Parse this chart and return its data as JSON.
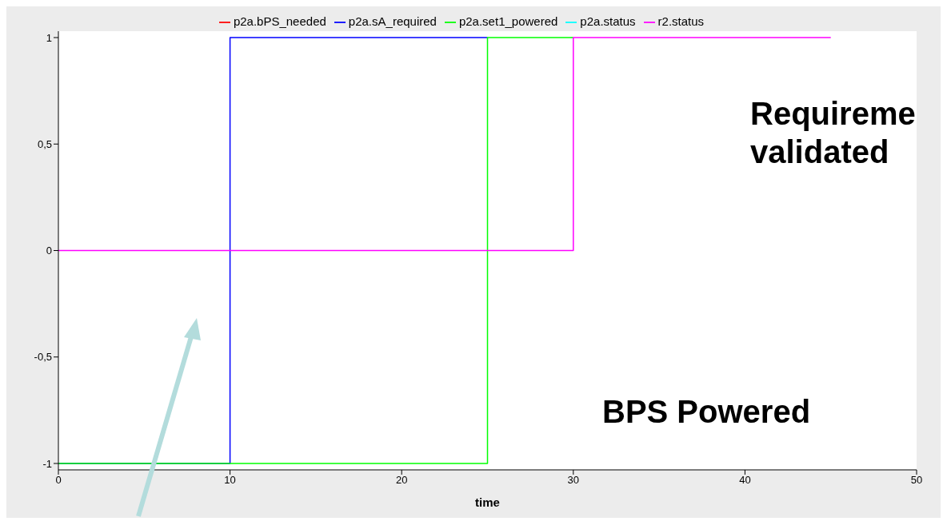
{
  "chart_data": {
    "type": "step",
    "xlabel": "time",
    "x": [
      0,
      10,
      25,
      30,
      45
    ],
    "series": [
      {
        "name": "p2a.bPS_needed",
        "color": "#ff0000",
        "values": [
          null,
          null,
          null,
          null,
          null
        ]
      },
      {
        "name": "p2a.sA_required",
        "color": "#0000ff",
        "values": [
          -1,
          1,
          1,
          null,
          null
        ]
      },
      {
        "name": "p2a.set1_powered",
        "color": "#00ff00",
        "values": [
          -1,
          -1,
          1,
          1,
          null
        ]
      },
      {
        "name": "p2a.status",
        "color": "#00ffff",
        "values": [
          null,
          null,
          null,
          null,
          null
        ]
      },
      {
        "name": "r2.status",
        "color": "#ff00ff",
        "values": [
          0,
          0,
          0,
          1,
          1
        ]
      }
    ],
    "xlim": [
      0,
      50
    ],
    "xticks": [
      0,
      10,
      20,
      30,
      40,
      50
    ],
    "ylim": [
      -1.03,
      1.03
    ],
    "yticks": [
      -1,
      {
        "value": -0.5,
        "label": "-0,5"
      },
      0,
      {
        "value": 0.5,
        "label": "0,5"
      },
      1
    ],
    "legend": "top",
    "grid": false,
    "marker": "none",
    "line_style": "solid",
    "annotations": [
      "Requireme validated",
      "BPS Powered"
    ]
  }
}
